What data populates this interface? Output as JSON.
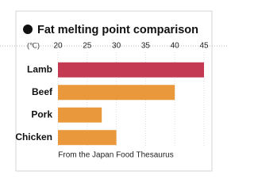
{
  "chart_data": {
    "type": "bar",
    "orientation": "horizontal",
    "title": "Fat melting point comparison",
    "unit": "(℃)",
    "source": "From the Japan Food Thesaurus",
    "categories": [
      "Lamb",
      "Beef",
      "Pork",
      "Chicken"
    ],
    "values": [
      45,
      40,
      27.5,
      30
    ],
    "colors": [
      "#c33a52",
      "#e9983c",
      "#e9983c",
      "#e9983c"
    ],
    "xlim": [
      20,
      45
    ],
    "xticks": [
      20,
      25,
      30,
      35,
      40,
      45
    ],
    "grid": true
  }
}
